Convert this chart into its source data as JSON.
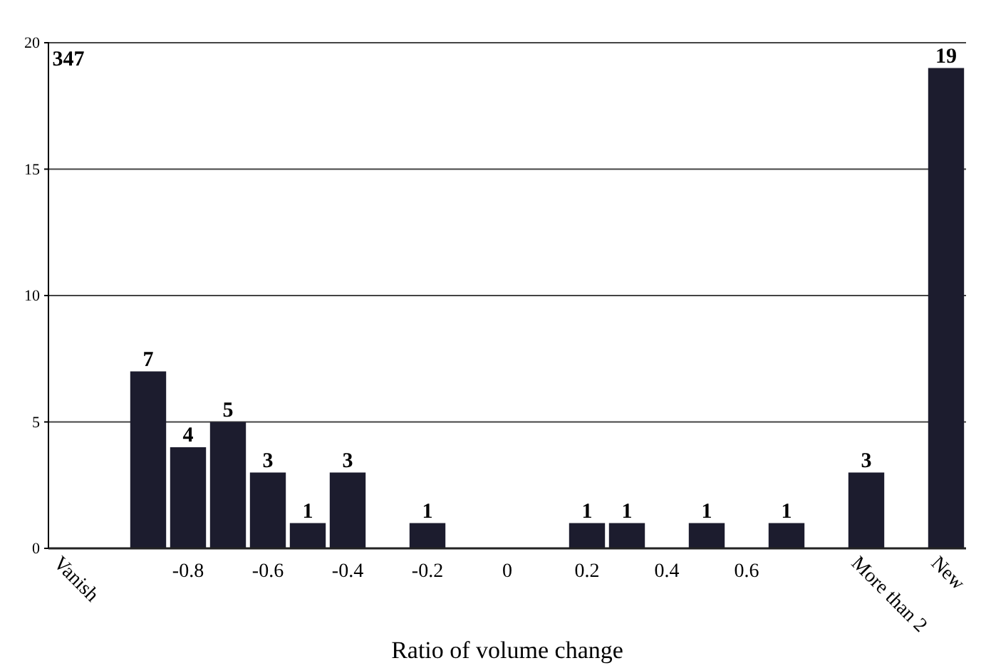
{
  "chart_data": {
    "type": "bar",
    "xlabel": "Ratio of volume change",
    "categories": [
      "Vanish",
      null,
      null,
      "-0.8",
      null,
      "-0.6",
      null,
      "-0.4",
      null,
      "-0.2",
      null,
      "0",
      null,
      "0.2",
      null,
      "0.4",
      null,
      "0.6",
      null,
      null,
      "More than 2",
      null,
      "New"
    ],
    "values": [
      null,
      null,
      7,
      4,
      5,
      3,
      1,
      3,
      null,
      1,
      null,
      null,
      null,
      1,
      1,
      null,
      1,
      null,
      1,
      null,
      3,
      null,
      19
    ],
    "value_labels": [
      "347",
      null,
      "7",
      "4",
      "5",
      "3",
      "1",
      "3",
      null,
      "1",
      null,
      null,
      null,
      "1",
      "1",
      null,
      "1",
      null,
      "1",
      null,
      "3",
      null,
      "19"
    ],
    "color": "#1c1c2e",
    "ylim": [
      0,
      20
    ],
    "yticks": [
      0,
      5,
      10,
      15,
      20
    ],
    "grid": "y"
  }
}
